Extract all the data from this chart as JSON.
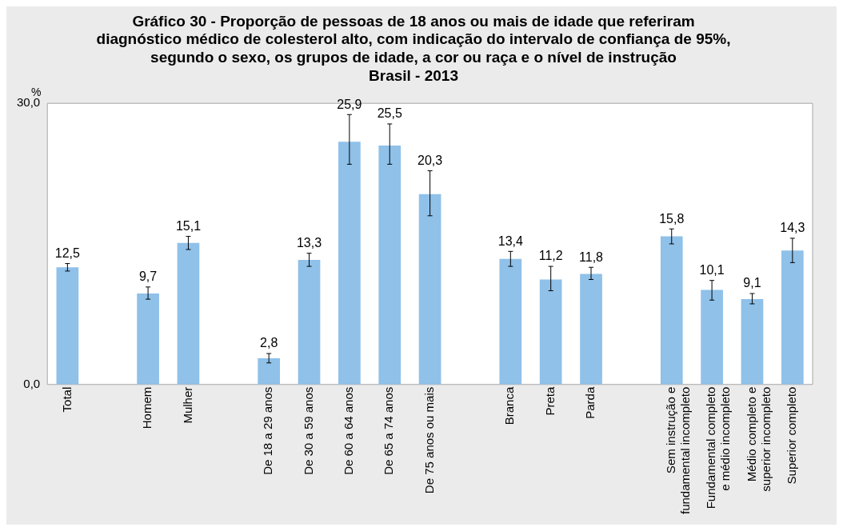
{
  "chart_data": {
    "type": "bar",
    "title": "Gráfico 30 - Proporção de pessoas de 18 anos ou mais de idade que referiram\ndiagnóstico médico de colesterol alto, com indicação do intervalo de confiança de 95%,\nsegundo o sexo, os grupos de idade, a cor ou raça e o nível de instrução",
    "subtitle": "Brasil - 2013",
    "ylabel": "%",
    "categories": [
      "Total",
      null,
      "Homem",
      "Mulher",
      null,
      "De 18 a 29 anos",
      "De 30 a 59 anos",
      "De 60 a 64 anos",
      "De 65 a 74 anos",
      "De 75 anos ou mais",
      null,
      "Branca",
      "Preta",
      "Parda",
      null,
      "Sem instrução e\nfundamental incompleto",
      "Fundamental completo\ne médio incompleto",
      "Médio completo e\nsuperior incompleto",
      "Superior completo"
    ],
    "values": [
      12.5,
      null,
      9.7,
      15.1,
      null,
      2.8,
      13.3,
      25.9,
      25.5,
      20.3,
      null,
      13.4,
      11.2,
      11.8,
      null,
      15.8,
      10.1,
      9.1,
      14.3
    ],
    "errors": [
      [
        12.1,
        12.9
      ],
      null,
      [
        9.1,
        10.4
      ],
      [
        14.4,
        15.8
      ],
      null,
      [
        2.3,
        3.3
      ],
      [
        12.6,
        14.0
      ],
      [
        23.5,
        28.8
      ],
      [
        23.5,
        27.8
      ],
      [
        18.0,
        22.8
      ],
      null,
      [
        12.6,
        14.2
      ],
      [
        10.0,
        12.6
      ],
      [
        11.2,
        12.5
      ],
      null,
      [
        15.0,
        16.6
      ],
      [
        9.0,
        11.1
      ],
      [
        8.6,
        9.7
      ],
      [
        13.0,
        15.6
      ]
    ],
    "value_labels": [
      "12,5",
      null,
      "9,7",
      "15,1",
      null,
      "2,8",
      "13,3",
      "25,9",
      "25,5",
      "20,3",
      null,
      "13,4",
      "11,2",
      "11,8",
      null,
      "15,8",
      "10,1",
      "9,1",
      "14,3"
    ],
    "color": "#8fc1e9",
    "ylim": [
      0,
      30
    ],
    "yticks": [
      {
        "value": 0,
        "label": "0,0"
      },
      {
        "value": 30,
        "label": "30,0"
      }
    ],
    "grid": false,
    "legend": false
  }
}
